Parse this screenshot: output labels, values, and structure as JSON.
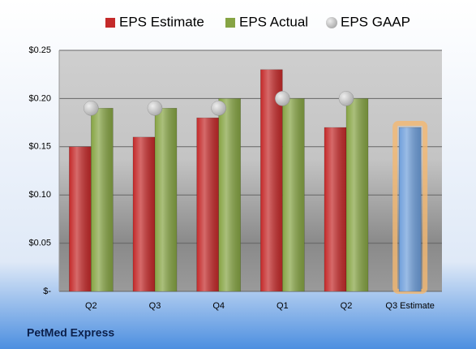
{
  "chart_data": {
    "type": "bar",
    "categories": [
      "Q2",
      "Q3",
      "Q4",
      "Q1",
      "Q2",
      "Q3 Estimate"
    ],
    "series": [
      {
        "name": "EPS Estimate",
        "color": "#c42a2a",
        "values": [
          0.15,
          0.16,
          0.18,
          0.23,
          0.17,
          0.17
        ],
        "colors": [
          "#c42a2a",
          "#c42a2a",
          "#c42a2a",
          "#c42a2a",
          "#c42a2a",
          "#6f9fdb"
        ]
      },
      {
        "name": "EPS Actual",
        "color": "#86a444",
        "values": [
          0.19,
          0.19,
          0.2,
          0.2,
          0.2,
          null
        ]
      },
      {
        "name": "EPS GAAP",
        "color": "#a9a9a9",
        "type": "scatter",
        "values": [
          0.19,
          0.19,
          0.19,
          0.2,
          0.2,
          null
        ]
      }
    ],
    "ylim": [
      0,
      0.25
    ],
    "yticks": [
      {
        "value": 0,
        "label": "$-"
      },
      {
        "value": 0.05,
        "label": "$0.05"
      },
      {
        "value": 0.1,
        "label": "$0.10"
      },
      {
        "value": 0.15,
        "label": "$0.15"
      },
      {
        "value": 0.2,
        "label": "$0.20"
      },
      {
        "value": 0.25,
        "label": "$0.25"
      }
    ],
    "grid": true,
    "footer": "PetMed Express"
  }
}
